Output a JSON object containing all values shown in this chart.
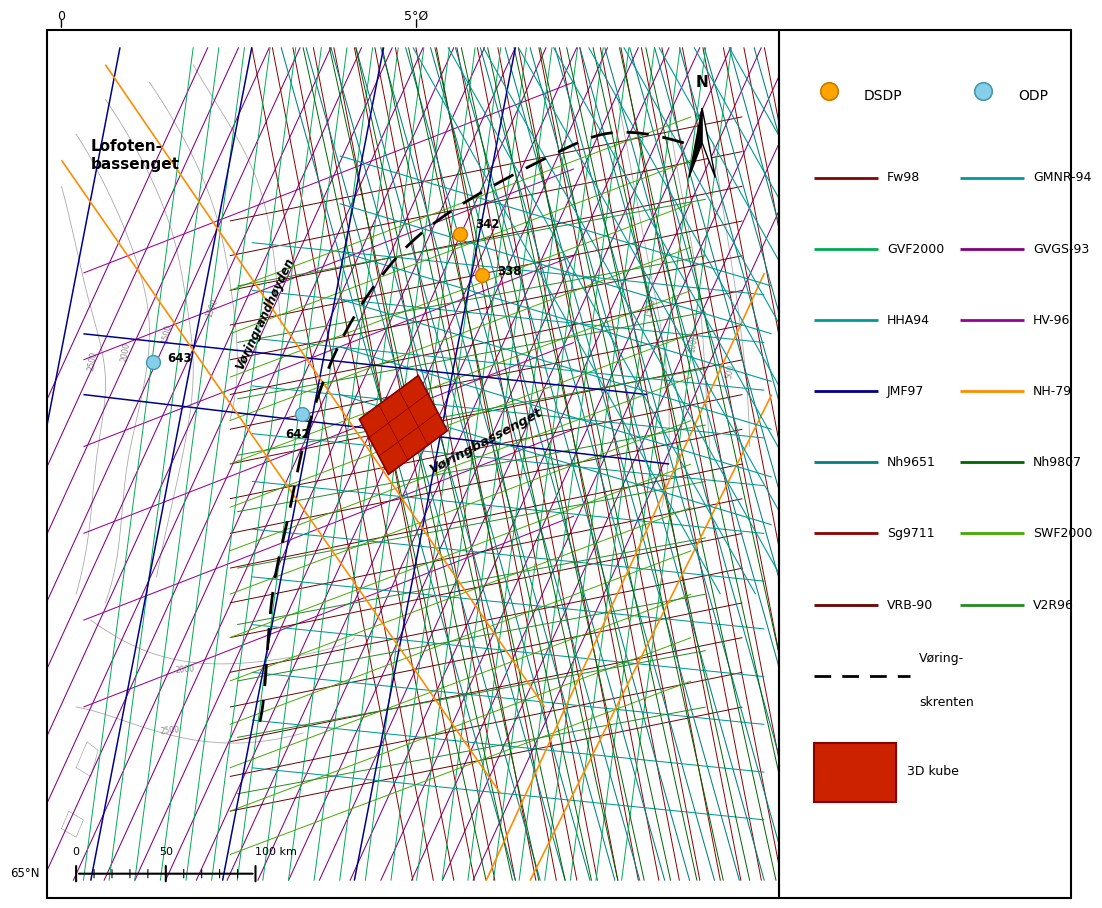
{
  "fw98_c": "#8B0000",
  "gmnr94_c": "#009999",
  "gvf2000_c": "#00AA55",
  "gvgs93_c": "#800080",
  "hha94_c": "#009999",
  "hv96_c": "#990099",
  "jmf97_c": "#00008B",
  "nh79_c": "#FF8C00",
  "nh9651_c": "#008080",
  "nh9807_c": "#006400",
  "sg9711_c": "#8B0000",
  "swf2000_c": "#44AA00",
  "vrb90_c": "#6B0000",
  "v2r96_c": "#228B22",
  "dsdp_c": "#FFA500",
  "odp_c": "#87CEEB",
  "cube_c": "#CC2200",
  "contour_c": "#AAAAAA",
  "scarp_c": "#000000",
  "legend_rows": [
    {
      "l1": "Fw98",
      "c1": "#8B0000",
      "l2": "GMNR-94",
      "c2": "#009999"
    },
    {
      "l1": "GVF2000",
      "c1": "#00AA55",
      "l2": "GVGS-93",
      "c2": "#800080"
    },
    {
      "l1": "HHA94",
      "c1": "#009999",
      "l2": "HV-96",
      "c2": "#990099"
    },
    {
      "l1": "JMF97",
      "c1": "#00008B",
      "l2": "NH-79",
      "c2": "#FF8C00"
    },
    {
      "l1": "Nh9651",
      "c1": "#008080",
      "l2": "Nh9807",
      "c2": "#006400"
    },
    {
      "l1": "Sg9711",
      "c1": "#8B0000",
      "l2": "SWF2000",
      "c2": "#44AA00"
    },
    {
      "l1": "VRB-90",
      "c1": "#6B0000",
      "l2": "V2R96",
      "c2": "#228B22"
    }
  ]
}
